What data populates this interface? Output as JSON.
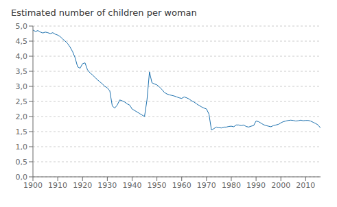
{
  "chart_data": {
    "type": "line",
    "title": "Estimated number of children per woman",
    "color": "#1a6fad",
    "grid": true,
    "xlim": [
      1900,
      2016
    ],
    "ylim": [
      0.0,
      5.0
    ],
    "xticks": [
      1900,
      1910,
      1920,
      1930,
      1940,
      1950,
      1960,
      1970,
      1980,
      1990,
      2000,
      2010
    ],
    "yticks": [
      {
        "value": 0.0,
        "label": "0,0"
      },
      {
        "value": 0.5,
        "label": "0,5"
      },
      {
        "value": 1.0,
        "label": "1,0"
      },
      {
        "value": 1.5,
        "label": "1,5"
      },
      {
        "value": 2.0,
        "label": "2,0"
      },
      {
        "value": 2.5,
        "label": "2,5"
      },
      {
        "value": 3.0,
        "label": "3,0"
      },
      {
        "value": 3.5,
        "label": "3,5"
      },
      {
        "value": 4.0,
        "label": "4,0"
      },
      {
        "value": 4.5,
        "label": "4,5"
      },
      {
        "value": 5.0,
        "label": "5,0"
      }
    ],
    "x": [
      1900,
      1901,
      1902,
      1903,
      1904,
      1905,
      1906,
      1907,
      1908,
      1909,
      1910,
      1911,
      1912,
      1913,
      1914,
      1915,
      1916,
      1917,
      1918,
      1919,
      1920,
      1921,
      1922,
      1923,
      1924,
      1925,
      1926,
      1927,
      1928,
      1929,
      1930,
      1931,
      1932,
      1933,
      1934,
      1935,
      1936,
      1937,
      1938,
      1939,
      1940,
      1941,
      1942,
      1943,
      1944,
      1945,
      1946,
      1947,
      1948,
      1949,
      1950,
      1951,
      1952,
      1953,
      1954,
      1955,
      1956,
      1957,
      1958,
      1959,
      1960,
      1961,
      1962,
      1963,
      1964,
      1965,
      1966,
      1967,
      1968,
      1969,
      1970,
      1971,
      1972,
      1973,
      1974,
      1975,
      1976,
      1977,
      1978,
      1979,
      1980,
      1981,
      1982,
      1983,
      1984,
      1985,
      1986,
      1987,
      1988,
      1989,
      1990,
      1991,
      1992,
      1993,
      1994,
      1995,
      1996,
      1997,
      1998,
      1999,
      2000,
      2001,
      2002,
      2003,
      2004,
      2005,
      2006,
      2007,
      2008,
      2009,
      2010,
      2011,
      2012,
      2013,
      2014,
      2015,
      2016
    ],
    "values": [
      4.87,
      4.82,
      4.85,
      4.8,
      4.77,
      4.8,
      4.78,
      4.75,
      4.78,
      4.73,
      4.7,
      4.65,
      4.57,
      4.5,
      4.42,
      4.3,
      4.15,
      3.95,
      3.65,
      3.6,
      3.75,
      3.78,
      3.55,
      3.45,
      3.38,
      3.3,
      3.22,
      3.15,
      3.08,
      3.0,
      2.95,
      2.85,
      2.35,
      2.28,
      2.38,
      2.55,
      2.52,
      2.48,
      2.42,
      2.38,
      2.25,
      2.2,
      2.15,
      2.1,
      2.05,
      2.0,
      2.55,
      3.48,
      3.12,
      3.08,
      3.05,
      2.98,
      2.9,
      2.8,
      2.75,
      2.72,
      2.7,
      2.68,
      2.65,
      2.62,
      2.6,
      2.65,
      2.62,
      2.58,
      2.52,
      2.48,
      2.42,
      2.37,
      2.32,
      2.28,
      2.25,
      2.08,
      1.55,
      1.6,
      1.65,
      1.63,
      1.62,
      1.65,
      1.65,
      1.67,
      1.68,
      1.66,
      1.72,
      1.72,
      1.7,
      1.72,
      1.67,
      1.65,
      1.68,
      1.7,
      1.85,
      1.83,
      1.78,
      1.73,
      1.7,
      1.68,
      1.66,
      1.7,
      1.72,
      1.74,
      1.79,
      1.83,
      1.85,
      1.87,
      1.88,
      1.87,
      1.85,
      1.86,
      1.88,
      1.86,
      1.87,
      1.87,
      1.85,
      1.81,
      1.77,
      1.72,
      1.62
    ]
  }
}
